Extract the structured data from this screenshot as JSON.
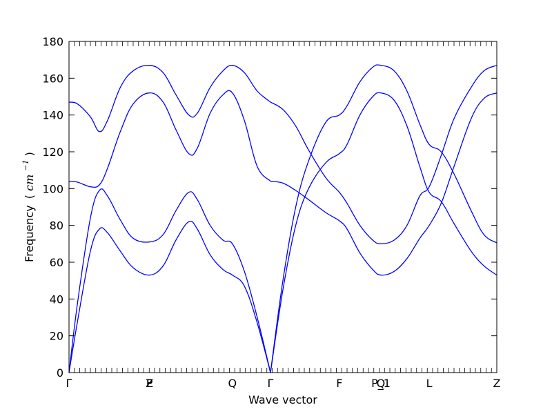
{
  "chart_data": {
    "type": "line",
    "title": "",
    "xlabel": "Wave vector",
    "ylabel": "Frequency",
    "ylabel_unit_open": "(",
    "ylabel_unit_base": "cm",
    "ylabel_unit_exp": "−1",
    "ylabel_unit_close": ")",
    "ylim": [
      0,
      180
    ],
    "yticks": [
      0,
      20,
      40,
      60,
      80,
      100,
      120,
      140,
      160,
      180
    ],
    "xlim": [
      0,
      1
    ],
    "grid": false,
    "legend": "none",
    "line_color": "#0000ff",
    "high_symmetry_points": [
      {
        "label": "Γ",
        "x": 0
      },
      {
        "label": "F",
        "x": 0.188
      },
      {
        "label": "P",
        "x": 0.188
      },
      {
        "label": "Z",
        "x": 0.188
      },
      {
        "label": "Q",
        "x": 0.382
      },
      {
        "label": "Γ",
        "x": 0.471
      },
      {
        "label": "F",
        "x": 0.632
      },
      {
        "label": "P_1",
        "x": 0.729
      },
      {
        "label": "Q",
        "x": 0.729
      },
      {
        "label": "L",
        "x": 0.842
      },
      {
        "label": "Z",
        "x": 1.0
      }
    ],
    "series": [
      {
        "x": [
          0,
          0.02,
          0.05,
          0.071,
          0.09,
          0.12,
          0.15,
          0.188,
          0.22,
          0.25,
          0.28,
          0.3,
          0.33,
          0.36,
          0.382,
          0.41,
          0.44,
          0.471
        ],
        "values": [
          147,
          146,
          139,
          131,
          137,
          155,
          164,
          167,
          163,
          151,
          140,
          141,
          155,
          164,
          167,
          163,
          153,
          147
        ]
      },
      {
        "x": [
          0,
          0.02,
          0.05,
          0.071,
          0.09,
          0.12,
          0.15,
          0.188,
          0.22,
          0.25,
          0.28,
          0.3,
          0.33,
          0.36,
          0.382,
          0.41,
          0.44,
          0.471
        ],
        "values": [
          104,
          103.5,
          101,
          102,
          111,
          131,
          146,
          152,
          147,
          132,
          119,
          122,
          141,
          151,
          152,
          137,
          112,
          104
        ]
      },
      {
        "x": [
          0,
          0.02,
          0.05,
          0.071,
          0.09,
          0.12,
          0.15,
          0.188,
          0.22,
          0.25,
          0.28,
          0.3,
          0.33,
          0.36,
          0.382,
          0.41,
          0.44,
          0.471
        ],
        "values": [
          0,
          38,
          84,
          99,
          96,
          83,
          73,
          71,
          75,
          88,
          98,
          94,
          80,
          72,
          70,
          55,
          30,
          0
        ]
      },
      {
        "x": [
          0,
          0.02,
          0.05,
          0.071,
          0.09,
          0.12,
          0.15,
          0.188,
          0.22,
          0.25,
          0.28,
          0.3,
          0.33,
          0.36,
          0.382,
          0.41,
          0.44,
          0.471
        ],
        "values": [
          0,
          28,
          66,
          78,
          76,
          66,
          57,
          53,
          58,
          72,
          82,
          78,
          64,
          56,
          53,
          47,
          27,
          0
        ]
      },
      {
        "x": [
          0.471,
          0.5,
          0.53,
          0.56,
          0.6,
          0.632,
          0.65,
          0.68,
          0.71,
          0.729,
          0.76,
          0.79,
          0.82,
          0.842,
          0.87,
          0.9,
          0.94,
          0.97,
          1.0
        ],
        "values": [
          147,
          143,
          134,
          121,
          106,
          98,
          92,
          80,
          72,
          70,
          72,
          80,
          96,
          101,
          118,
          138,
          155,
          164,
          167
        ]
      },
      {
        "x": [
          0.471,
          0.5,
          0.53,
          0.56,
          0.6,
          0.632,
          0.65,
          0.68,
          0.71,
          0.729,
          0.76,
          0.79,
          0.82,
          0.842,
          0.87,
          0.9,
          0.94,
          0.97,
          1.0
        ],
        "values": [
          104,
          103,
          99,
          94,
          87,
          82.5,
          78,
          65,
          56,
          53,
          55,
          62,
          73,
          80,
          92,
          112,
          138,
          149,
          152
        ]
      },
      {
        "x": [
          0.471,
          0.5,
          0.53,
          0.56,
          0.6,
          0.632,
          0.65,
          0.68,
          0.71,
          0.729,
          0.76,
          0.79,
          0.82,
          0.842,
          0.87,
          0.9,
          0.94,
          0.97,
          1.0
        ],
        "values": [
          0,
          50,
          90,
          115,
          136,
          140,
          145,
          158,
          166,
          167,
          164,
          153,
          135,
          124,
          120,
          108,
          88,
          75,
          70.5
        ]
      },
      {
        "x": [
          0.471,
          0.5,
          0.53,
          0.56,
          0.6,
          0.632,
          0.65,
          0.68,
          0.71,
          0.729,
          0.76,
          0.79,
          0.82,
          0.842,
          0.87,
          0.9,
          0.94,
          0.97,
          1.0
        ],
        "values": [
          0,
          45,
          80,
          100,
          114,
          119,
          124,
          140,
          150,
          152,
          148,
          134,
          112,
          98,
          93,
          81,
          66,
          58,
          53
        ]
      }
    ]
  }
}
